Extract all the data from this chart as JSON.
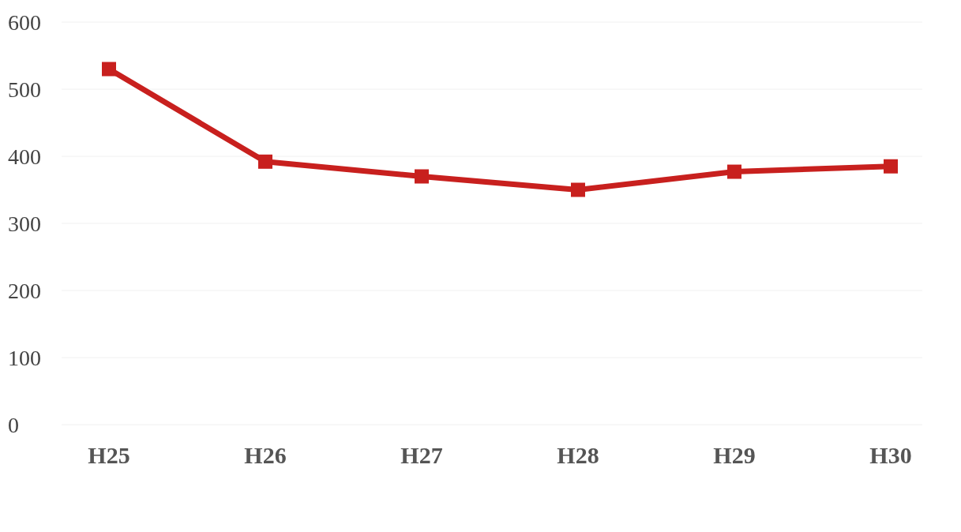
{
  "chart_data": {
    "type": "line",
    "categories": [
      "H25",
      "H26",
      "H27",
      "H28",
      "H29",
      "H30"
    ],
    "series": [
      {
        "color": "#c8201e",
        "values": [
          530,
          392,
          370,
          350,
          377,
          385
        ]
      }
    ],
    "ylim": [
      0,
      600
    ],
    "yticks": [
      0,
      100,
      200,
      300,
      400,
      500,
      600
    ],
    "grid": "y",
    "marker": "square"
  }
}
